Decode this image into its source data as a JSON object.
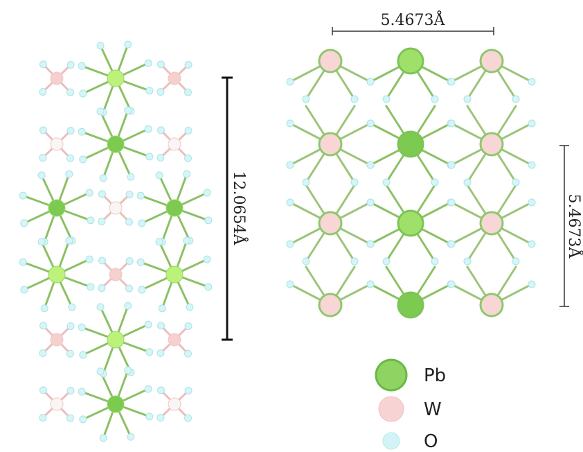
{
  "scale_bars": {
    "top": "5.4673Å",
    "left": "12.0654Å",
    "right": "5.4673Å"
  },
  "legend": {
    "items": [
      "Pb",
      "W",
      "O"
    ]
  }
}
